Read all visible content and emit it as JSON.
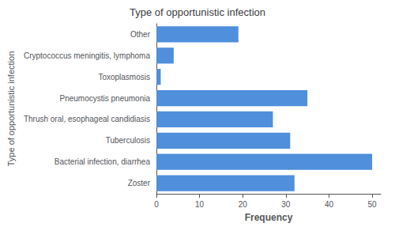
{
  "chart_data": {
    "type": "bar",
    "orientation": "horizontal",
    "title": "Type of opportunistic infection",
    "xlabel": "Frequency",
    "ylabel": "Type of opportunistic infection",
    "categories": [
      "Other",
      "Cryptococcus meningitis, lymphoma",
      "Toxoplasmosis",
      "Pneumocystis pneumonia",
      "Thrush oral, esophageal candidiasis",
      "Tuberculosis",
      "Bacterial infection, diarrhea",
      "Zoster"
    ],
    "values": [
      19,
      4,
      1,
      35,
      27,
      31,
      50,
      32
    ],
    "color": "#4f8fdc",
    "xlim": [
      0,
      52
    ],
    "xticks": [
      0,
      10,
      20,
      30,
      40,
      50
    ],
    "grid": false
  }
}
